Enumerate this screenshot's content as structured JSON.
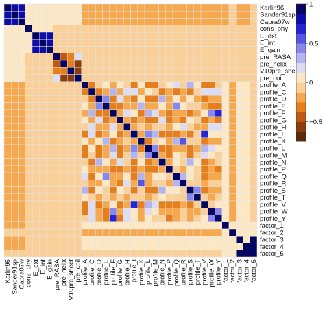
{
  "chart_data": {
    "type": "heatmap",
    "title": "",
    "labels": [
      "Karlin96",
      "Sander91sp",
      "Capra07w",
      "cons_phy",
      "E_ext",
      "E_int",
      "E_gain",
      "pre_RASA",
      "pre_helix",
      "V10pre_sheet",
      "pre_coil",
      "profile_A",
      "profile_C",
      "profile_D",
      "profile_E",
      "profile_F",
      "profile_G",
      "profile_H",
      "profile_I",
      "profile_K",
      "profile_L",
      "profile_M",
      "profile_N",
      "profile_P",
      "profile_Q",
      "profile_R",
      "profile_S",
      "profile_T",
      "profile_V",
      "profile_W",
      "profile_Y",
      "factor_1",
      "factor_2",
      "factor_3",
      "factor_4",
      "factor_5"
    ],
    "color_scale": {
      "ticks": [
        1,
        0.5,
        0,
        -0.5
      ],
      "tick_labels": [
        "1",
        "0.5",
        "0",
        "−0.5"
      ],
      "range": [
        -0.75,
        1
      ],
      "breaks": [
        -0.75,
        -0.625,
        -0.5,
        -0.375,
        -0.25,
        -0.125,
        0,
        0.125,
        0.25,
        0.375,
        0.5,
        0.625,
        0.75,
        0.875,
        1
      ],
      "colors": [
        "#5c2a08",
        "#8c3c0e",
        "#c05813",
        "#e57e1c",
        "#f5a84d",
        "#fad09a",
        "#fde8c6",
        "#dcdcf2",
        "#b4b4ee",
        "#8888ea",
        "#5555e2",
        "#2424d6",
        "#0c0ca8",
        "#060660"
      ]
    },
    "matrix": [
      [
        1,
        0.85,
        0.85,
        0.1,
        0.1,
        0.1,
        0.1,
        0.05,
        0.05,
        0.05,
        0.05,
        -0.2,
        -0.2,
        -0.2,
        -0.2,
        -0.2,
        -0.2,
        -0.2,
        -0.2,
        -0.2,
        -0.2,
        -0.2,
        -0.2,
        -0.2,
        -0.2,
        -0.2,
        -0.2,
        -0.2,
        -0.2,
        -0.2,
        -0.2,
        -0.15,
        -0.1,
        -0.15,
        -0.15,
        -0.1
      ],
      [
        0.85,
        1,
        0.85,
        0.1,
        0.1,
        0.1,
        0.1,
        0.05,
        0.05,
        0.05,
        0.05,
        -0.2,
        -0.2,
        -0.2,
        -0.2,
        -0.2,
        -0.2,
        -0.2,
        -0.2,
        -0.2,
        -0.2,
        -0.2,
        -0.2,
        -0.2,
        -0.2,
        -0.2,
        -0.2,
        -0.2,
        -0.2,
        -0.2,
        -0.2,
        -0.15,
        -0.1,
        -0.15,
        -0.15,
        -0.1
      ],
      [
        0.85,
        0.85,
        1,
        0.1,
        0.1,
        0.1,
        0.1,
        0.05,
        0.05,
        0.05,
        0.05,
        -0.2,
        -0.2,
        -0.2,
        -0.2,
        -0.2,
        -0.2,
        -0.2,
        -0.2,
        -0.2,
        -0.2,
        -0.2,
        -0.2,
        -0.2,
        -0.2,
        -0.2,
        -0.2,
        -0.2,
        -0.2,
        -0.2,
        -0.2,
        -0.15,
        -0.1,
        -0.15,
        -0.15,
        -0.1
      ],
      [
        0.1,
        0.1,
        0.1,
        1,
        0.05,
        0.05,
        0.05,
        0,
        0,
        0,
        0,
        0,
        0,
        0,
        0,
        0,
        0,
        0,
        0,
        0,
        0,
        0,
        0,
        0,
        0,
        0,
        0,
        0,
        0,
        0,
        0,
        0,
        0,
        0,
        0,
        0
      ],
      [
        0.1,
        0.1,
        0.1,
        0.05,
        1,
        0.85,
        0.85,
        0,
        0,
        0,
        0,
        0,
        0,
        0,
        0,
        0,
        0,
        0,
        0,
        0,
        0,
        0,
        0,
        0,
        0,
        0,
        0,
        0,
        0,
        0,
        0,
        0,
        0,
        0,
        0,
        0
      ],
      [
        0.1,
        0.1,
        0.1,
        0.05,
        0.85,
        1,
        0.85,
        0,
        0,
        0,
        0,
        0,
        0,
        0,
        0,
        0,
        0,
        0,
        0,
        0,
        0,
        0,
        0,
        0,
        0,
        0,
        0,
        0,
        0,
        0,
        0,
        0,
        0,
        0,
        0,
        0
      ],
      [
        0.1,
        0.1,
        0.1,
        0.05,
        0.85,
        0.85,
        1,
        0,
        0,
        0,
        0,
        0,
        0,
        0,
        0,
        0,
        0,
        0,
        0,
        0,
        0,
        0,
        0,
        0,
        0,
        0,
        0,
        0,
        0,
        0,
        0,
        0,
        0,
        0,
        0,
        0
      ],
      [
        0.05,
        0.05,
        0.05,
        0,
        0,
        0,
        0,
        1,
        -0.4,
        -0.3,
        0.2,
        0,
        0,
        0,
        0,
        0,
        0,
        0,
        0,
        0,
        0,
        0,
        0,
        0,
        0,
        0,
        0,
        0,
        0,
        0,
        0,
        0,
        0,
        0,
        0,
        0
      ],
      [
        0.05,
        0.05,
        0.05,
        0,
        0,
        0,
        0,
        -0.4,
        1,
        -0.3,
        -0.5,
        0,
        0,
        0,
        0,
        0,
        0,
        0,
        0,
        0,
        0,
        0,
        0,
        0,
        0,
        0,
        0,
        0,
        0,
        0,
        0,
        0,
        0,
        0,
        0,
        0
      ],
      [
        0.05,
        0.05,
        0.05,
        0,
        0,
        0,
        0,
        -0.3,
        -0.3,
        1,
        -0.6,
        0,
        0,
        0,
        0,
        0,
        0,
        0,
        0,
        0,
        0,
        0,
        0,
        0,
        0,
        0,
        0,
        0,
        0,
        0,
        0,
        0,
        0,
        0,
        0,
        0
      ],
      [
        0.05,
        0.05,
        0.05,
        0,
        0,
        0,
        0,
        0.2,
        -0.5,
        -0.6,
        1,
        0,
        0,
        0,
        0,
        0,
        0,
        0,
        0,
        0,
        0,
        0,
        0,
        0,
        0,
        0,
        0,
        0,
        0,
        0,
        0,
        0,
        0,
        0,
        0,
        0
      ],
      [
        -0.2,
        -0.2,
        -0.2,
        0,
        0,
        0,
        0,
        0,
        0,
        0,
        0,
        1,
        -0.3,
        -0.1,
        0.1,
        -0.2,
        0.1,
        -0.1,
        -0.3,
        0.1,
        -0.3,
        -0.3,
        -0.1,
        0.1,
        0.2,
        -0.1,
        0.3,
        0.1,
        -0.3,
        -0.3,
        0,
        0.05,
        -0.15,
        0.05,
        0.05,
        0
      ],
      [
        -0.2,
        -0.2,
        -0.2,
        0,
        0,
        0,
        0,
        0,
        0,
        0,
        0,
        -0.3,
        1,
        -0.3,
        -0.2,
        0.3,
        -0.2,
        0.2,
        0.2,
        -0.2,
        0.1,
        0,
        -0.3,
        -0.2,
        -0.3,
        -0.2,
        -0.3,
        -0.1,
        0.2,
        0.2,
        0.2,
        0.05,
        -0.15,
        0.05,
        0.05,
        0
      ],
      [
        -0.2,
        -0.2,
        -0.2,
        0,
        0,
        0,
        0,
        0,
        0,
        0,
        0,
        -0.1,
        -0.3,
        1,
        0.4,
        -0.3,
        0.2,
        -0.2,
        -0.3,
        0.1,
        -0.3,
        -0.3,
        0.3,
        -0.2,
        0.1,
        -0.2,
        0.1,
        -0.2,
        -0.3,
        -0.2,
        -0.2,
        0.05,
        -0.15,
        0.05,
        0.05,
        0
      ],
      [
        -0.2,
        -0.2,
        -0.2,
        0,
        0,
        0,
        0,
        0,
        0,
        0,
        0,
        0.1,
        -0.2,
        0.4,
        1,
        -0.3,
        -0.3,
        -0.2,
        -0.2,
        0.3,
        -0.2,
        -0.2,
        0.1,
        -0.2,
        0.4,
        0.1,
        0,
        0,
        -0.2,
        -0.3,
        -0.3,
        0.05,
        -0.15,
        0.05,
        0.05,
        0
      ],
      [
        -0.2,
        -0.2,
        -0.2,
        0,
        0,
        0,
        0,
        0,
        0,
        0,
        0,
        -0.2,
        0.3,
        -0.3,
        -0.3,
        1,
        -0.2,
        0.2,
        0.1,
        -0.3,
        0.3,
        0.2,
        -0.2,
        -0.3,
        -0.2,
        -0.2,
        -0.3,
        -0.2,
        0.1,
        0.4,
        0.7,
        0.05,
        -0.15,
        0.05,
        0.05,
        0
      ],
      [
        -0.2,
        -0.2,
        -0.2,
        0,
        0,
        0,
        0,
        0,
        0,
        0,
        0,
        0.1,
        -0.2,
        0.2,
        -0.3,
        -0.2,
        1,
        -0.2,
        -0.3,
        -0.2,
        -0.3,
        -0.3,
        0.2,
        -0.3,
        -0.2,
        -0.3,
        0.1,
        0,
        -0.3,
        -0.2,
        -0.3,
        0.05,
        -0.15,
        0.05,
        0.05,
        0
      ],
      [
        -0.2,
        -0.2,
        -0.2,
        0,
        0,
        0,
        0,
        0,
        0,
        0,
        0,
        -0.1,
        0.2,
        -0.2,
        -0.2,
        0.2,
        -0.2,
        1,
        -0.2,
        -0.1,
        -0.2,
        -0.1,
        0,
        -0.2,
        0.1,
        0.2,
        -0.1,
        -0.2,
        -0.2,
        0.2,
        0.2,
        0.05,
        -0.15,
        0.05,
        0.05,
        0
      ],
      [
        -0.2,
        -0.2,
        -0.2,
        0,
        0,
        0,
        0,
        0,
        0,
        0,
        0,
        -0.3,
        0.2,
        -0.3,
        -0.2,
        0.1,
        -0.3,
        -0.2,
        1,
        -0.2,
        0.4,
        0.3,
        -0.3,
        -0.3,
        -0.3,
        -0.2,
        -0.3,
        -0.1,
        0.7,
        0.1,
        0.1,
        0.05,
        -0.15,
        0.05,
        0.05,
        0
      ],
      [
        -0.2,
        -0.2,
        -0.2,
        0,
        0,
        0,
        0,
        0,
        0,
        0,
        0,
        0.1,
        -0.2,
        0.1,
        0.3,
        -0.3,
        -0.2,
        -0.1,
        -0.2,
        1,
        -0.3,
        -0.1,
        0.1,
        -0.2,
        0.3,
        0.6,
        0,
        -0.1,
        -0.3,
        -0.2,
        -0.2,
        0.05,
        -0.15,
        0.05,
        0.05,
        0
      ],
      [
        -0.2,
        -0.2,
        -0.2,
        0,
        0,
        0,
        0,
        0,
        0,
        0,
        0,
        -0.3,
        0.1,
        -0.3,
        -0.2,
        0.3,
        -0.3,
        -0.2,
        0.4,
        -0.3,
        1,
        0.5,
        -0.3,
        -0.3,
        -0.2,
        -0.2,
        -0.3,
        -0.2,
        0.3,
        0.2,
        0.1,
        0.05,
        -0.15,
        0.05,
        0.05,
        0
      ],
      [
        -0.2,
        -0.2,
        -0.2,
        0,
        0,
        0,
        0,
        0,
        0,
        0,
        0,
        -0.3,
        0,
        -0.3,
        -0.2,
        0.2,
        -0.3,
        -0.1,
        0.3,
        -0.1,
        0.5,
        1,
        -0.2,
        -0.3,
        0.1,
        -0.1,
        -0.3,
        -0.1,
        0.2,
        0.1,
        0,
        0.05,
        -0.15,
        0.05,
        0.05,
        0
      ],
      [
        -0.2,
        -0.2,
        -0.2,
        0,
        0,
        0,
        0,
        0,
        0,
        0,
        0,
        -0.1,
        -0.3,
        0.3,
        0.1,
        -0.2,
        0.2,
        0,
        -0.3,
        0.1,
        -0.3,
        -0.2,
        1,
        -0.2,
        0.1,
        0,
        0.3,
        0.1,
        -0.3,
        -0.2,
        -0.1,
        0.05,
        -0.15,
        0.05,
        0.05,
        0
      ],
      [
        -0.2,
        -0.2,
        -0.2,
        0,
        0,
        0,
        0,
        0,
        0,
        0,
        0,
        0.1,
        -0.2,
        -0.2,
        -0.2,
        -0.3,
        -0.3,
        -0.2,
        -0.3,
        -0.2,
        -0.3,
        -0.3,
        -0.2,
        1,
        -0.1,
        -0.2,
        0.1,
        0,
        -0.3,
        -0.2,
        -0.3,
        0.05,
        -0.15,
        0.05,
        0.05,
        0
      ],
      [
        -0.2,
        -0.2,
        -0.2,
        0,
        0,
        0,
        0,
        0,
        0,
        0,
        0,
        0.2,
        -0.3,
        0.1,
        0.4,
        -0.2,
        -0.2,
        0.1,
        -0.3,
        0.3,
        -0.2,
        0.1,
        0.1,
        -0.1,
        1,
        0.3,
        0.1,
        0,
        -0.3,
        -0.2,
        -0.2,
        0.05,
        -0.15,
        0.05,
        0.05,
        0
      ],
      [
        -0.2,
        -0.2,
        -0.2,
        0,
        0,
        0,
        0,
        0,
        0,
        0,
        0,
        -0.1,
        -0.2,
        -0.2,
        0.1,
        -0.2,
        -0.3,
        0.2,
        -0.2,
        0.6,
        -0.2,
        -0.1,
        0,
        -0.2,
        0.3,
        1,
        0,
        -0.1,
        -0.2,
        0,
        -0.1,
        0.05,
        -0.15,
        0.05,
        0.05,
        0
      ],
      [
        -0.2,
        -0.2,
        -0.2,
        0,
        0,
        0,
        0,
        0,
        0,
        0,
        0,
        0.3,
        -0.3,
        0.1,
        0,
        -0.3,
        0.1,
        -0.1,
        -0.3,
        0,
        -0.3,
        -0.3,
        0.3,
        0.1,
        0.1,
        0,
        1,
        0.4,
        -0.3,
        -0.2,
        -0.2,
        0.05,
        -0.15,
        0.05,
        0.05,
        0
      ],
      [
        -0.2,
        -0.2,
        -0.2,
        0,
        0,
        0,
        0,
        0,
        0,
        0,
        0,
        0.1,
        -0.1,
        -0.2,
        0,
        -0.2,
        0,
        -0.2,
        -0.1,
        -0.1,
        -0.2,
        -0.1,
        0.1,
        0,
        0,
        -0.1,
        0.4,
        1,
        0,
        -0.2,
        -0.1,
        0.05,
        -0.15,
        0.05,
        0.05,
        0
      ],
      [
        -0.2,
        -0.2,
        -0.2,
        0,
        0,
        0,
        0,
        0,
        0,
        0,
        0,
        -0.3,
        0.2,
        -0.3,
        -0.2,
        0.1,
        -0.3,
        -0.2,
        0.7,
        -0.3,
        0.3,
        0.2,
        -0.3,
        -0.3,
        -0.3,
        -0.2,
        -0.3,
        0,
        1,
        0,
        0.1,
        0.05,
        -0.15,
        0.05,
        0.05,
        0
      ],
      [
        -0.2,
        -0.2,
        -0.2,
        0,
        0,
        0,
        0,
        0,
        0,
        0,
        0,
        -0.3,
        0.2,
        -0.2,
        -0.3,
        0.4,
        -0.2,
        0.2,
        0.1,
        -0.2,
        0.2,
        0.1,
        -0.2,
        -0.2,
        -0.2,
        0,
        -0.2,
        -0.2,
        0,
        1,
        0.5,
        0.05,
        -0.15,
        0.05,
        0.05,
        0
      ],
      [
        -0.2,
        -0.2,
        -0.2,
        0,
        0,
        0,
        0,
        0,
        0,
        0,
        0,
        0,
        0.2,
        -0.2,
        -0.3,
        0.7,
        -0.3,
        0.2,
        0.1,
        -0.2,
        0.1,
        0,
        -0.1,
        -0.3,
        -0.2,
        -0.1,
        -0.2,
        -0.1,
        0.1,
        0.5,
        1,
        0.05,
        -0.15,
        0.05,
        0.05,
        0
      ],
      [
        -0.15,
        -0.15,
        -0.15,
        0,
        0,
        0,
        0,
        0,
        0,
        0,
        0,
        0.05,
        0.05,
        0.05,
        0.05,
        0.05,
        0.05,
        0.05,
        0.05,
        0.05,
        0.05,
        0.05,
        0.05,
        0.05,
        0.05,
        0.05,
        0.05,
        0.05,
        0.05,
        0.05,
        0.05,
        1,
        0.05,
        0.05,
        0.05,
        0.05
      ],
      [
        -0.1,
        -0.1,
        -0.1,
        0,
        0,
        0,
        0,
        0,
        0,
        0,
        0,
        -0.15,
        -0.15,
        -0.15,
        -0.15,
        -0.15,
        -0.15,
        -0.15,
        -0.15,
        -0.15,
        -0.15,
        -0.15,
        -0.15,
        -0.15,
        -0.15,
        -0.15,
        -0.15,
        -0.15,
        -0.15,
        -0.15,
        -0.15,
        0.05,
        1,
        0.05,
        0.05,
        0.05
      ],
      [
        -0.15,
        -0.15,
        -0.15,
        0,
        0,
        0,
        0,
        0,
        0,
        0,
        0,
        0.05,
        0.05,
        0.05,
        0.05,
        0.05,
        0.05,
        0.05,
        0.05,
        0.05,
        0.05,
        0.05,
        0.05,
        0.05,
        0.05,
        0.05,
        0.05,
        0.05,
        0.05,
        0.05,
        0.05,
        0.05,
        0.05,
        1,
        0.05,
        0.9
      ],
      [
        -0.15,
        -0.15,
        -0.15,
        0,
        0,
        0,
        0,
        0,
        0,
        0,
        0,
        0.05,
        0.05,
        0.05,
        0.05,
        0.05,
        0.05,
        0.05,
        0.05,
        0.05,
        0.05,
        0.05,
        0.05,
        0.05,
        0.05,
        0.05,
        0.05,
        0.05,
        0.05,
        0.05,
        0.05,
        0.05,
        0.05,
        0.05,
        1,
        0.9
      ],
      [
        -0.1,
        -0.1,
        -0.1,
        0,
        0,
        0,
        0,
        0,
        0,
        0,
        0,
        0,
        0,
        0,
        0,
        0,
        0,
        0,
        0,
        0,
        0,
        0,
        0,
        0,
        0,
        0,
        0,
        0,
        0,
        0,
        0,
        0.05,
        0.05,
        0.9,
        0.9,
        1
      ]
    ]
  }
}
